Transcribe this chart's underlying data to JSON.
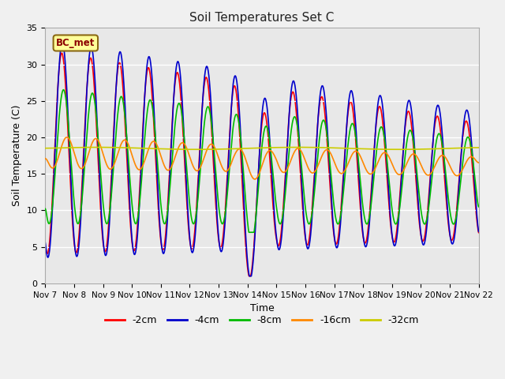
{
  "title": "Soil Temperatures Set C",
  "xlabel": "Time",
  "ylabel": "Soil Temperature (C)",
  "ylim": [
    0,
    35
  ],
  "annotation": "BC_met",
  "legend": [
    "-2cm",
    "-4cm",
    "-8cm",
    "-16cm",
    "-32cm"
  ],
  "colors": [
    "#ff0000",
    "#0000cc",
    "#00bb00",
    "#ff8800",
    "#cccc00"
  ],
  "fig_facecolor": "#f0f0f0",
  "ax_facecolor": "#e8e8e8",
  "xtick_labels": [
    "Nov 7",
    "Nov 8",
    "Nov 9",
    "Nov 10",
    "Nov 11",
    "Nov 12",
    "Nov 13",
    "Nov 14",
    "Nov 15",
    "Nov 16",
    "Nov 17",
    "Nov 18",
    "Nov 19",
    "Nov 20",
    "Nov 21",
    "Nov 22"
  ],
  "n_days": 15,
  "points_per_day": 96,
  "seed": 10
}
